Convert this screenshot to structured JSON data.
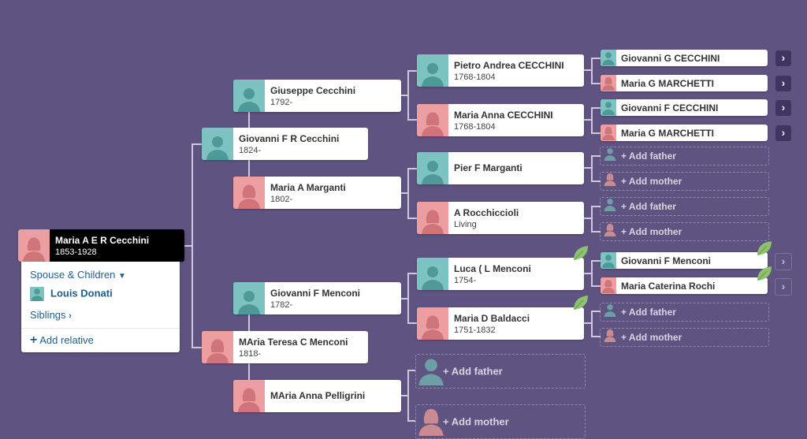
{
  "colors": {
    "background": "#5f5382",
    "male": "#7cc3c2",
    "female": "#ec9ea0",
    "selected": "#000000",
    "link": "#1f5f8b",
    "leaf": "#8dc26f"
  },
  "root": {
    "name": "Maria A E R Cecchini",
    "dates": "1853-1928"
  },
  "popup": {
    "spouse_children": "Spouse & Children",
    "spouse": "Louis Donati",
    "siblings": "Siblings",
    "add_relative": "Add relative"
  },
  "persons": {
    "giuseppe": {
      "name": "Giuseppe Cecchini",
      "dates": "1792-"
    },
    "giovanni_fr": {
      "name": "Giovanni F R Cecchini",
      "dates": "1824-"
    },
    "maria_a_marganti": {
      "name": "Maria A Marganti",
      "dates": "1802-"
    },
    "giovanni_f_menconi": {
      "name": "Giovanni F Menconi",
      "dates": "1782-"
    },
    "maria_teresa": {
      "name": "MAria Teresa C Menconi",
      "dates": "1818-"
    },
    "maria_anna_pelligrini": {
      "name": "MAria Anna Pelligrini",
      "dates": ""
    },
    "pietro": {
      "name": "Pietro Andrea CECCHINI",
      "dates": "1768-1804"
    },
    "maria_anna_cecchini": {
      "name": "Maria Anna CECCHINI",
      "dates": "1768-1804"
    },
    "pier": {
      "name": "Pier F Marganti",
      "dates": ""
    },
    "rocchiccioli": {
      "name": "A Rocchiccioli",
      "dates": "Living"
    },
    "luca": {
      "name": "Luca ( L Menconi",
      "dates": "1754-"
    },
    "maria_d": {
      "name": "Maria D Baldacci",
      "dates": "1751-1832"
    },
    "g_g_cecchini": {
      "name": "Giovanni G CECCHINI",
      "dates": ""
    },
    "m_g_marchetti_1": {
      "name": "Maria G MARCHETTI",
      "dates": ""
    },
    "g_f_cecchini": {
      "name": "Giovanni F CECCHINI",
      "dates": ""
    },
    "m_g_marchetti_2": {
      "name": "Maria G MARCHETTI",
      "dates": ""
    },
    "g_f_menconi": {
      "name": "Giovanni F Menconi",
      "dates": ""
    },
    "m_caterina": {
      "name": "Maria Caterina Rochi",
      "dates": ""
    }
  },
  "labels": {
    "add_father": "Add father",
    "add_mother": "Add mother"
  },
  "icons": {
    "expand": "chevron-right-icon",
    "leaf": "leaf-hint-icon",
    "add": "plus-icon"
  }
}
